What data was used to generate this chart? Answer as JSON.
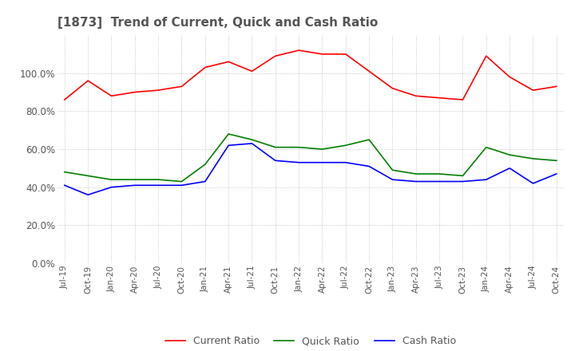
{
  "title": "[1873]  Trend of Current, Quick and Cash Ratio",
  "title_color": "#555555",
  "title_fontsize": 11,
  "background_color": "#ffffff",
  "grid_color": "#aaaaaa",
  "x_labels": [
    "Jul-19",
    "Oct-19",
    "Jan-20",
    "Apr-20",
    "Jul-20",
    "Oct-20",
    "Jan-21",
    "Apr-21",
    "Jul-21",
    "Oct-21",
    "Jan-22",
    "Apr-22",
    "Jul-22",
    "Oct-22",
    "Jan-23",
    "Apr-23",
    "Jul-23",
    "Oct-23",
    "Jan-24",
    "Apr-24",
    "Jul-24",
    "Oct-24"
  ],
  "current_ratio": [
    0.86,
    0.96,
    0.88,
    0.9,
    0.91,
    0.93,
    1.03,
    1.06,
    1.01,
    1.09,
    1.12,
    1.1,
    1.1,
    1.01,
    0.92,
    0.88,
    0.87,
    0.86,
    1.09,
    0.98,
    0.91,
    0.93
  ],
  "quick_ratio": [
    0.48,
    0.46,
    0.44,
    0.44,
    0.44,
    0.43,
    0.52,
    0.68,
    0.65,
    0.61,
    0.61,
    0.6,
    0.62,
    0.65,
    0.49,
    0.47,
    0.47,
    0.46,
    0.61,
    0.57,
    0.55,
    0.54
  ],
  "cash_ratio": [
    0.41,
    0.36,
    0.4,
    0.41,
    0.41,
    0.41,
    0.43,
    0.62,
    0.63,
    0.54,
    0.53,
    0.53,
    0.53,
    0.51,
    0.44,
    0.43,
    0.43,
    0.43,
    0.44,
    0.5,
    0.42,
    0.47
  ],
  "current_color": "#ff0000",
  "quick_color": "#008000",
  "cash_color": "#0000ff",
  "ylim": [
    0.0,
    1.2
  ],
  "yticks": [
    0.0,
    0.2,
    0.4,
    0.6,
    0.8,
    1.0
  ],
  "legend_labels": [
    "Current Ratio",
    "Quick Ratio",
    "Cash Ratio"
  ]
}
